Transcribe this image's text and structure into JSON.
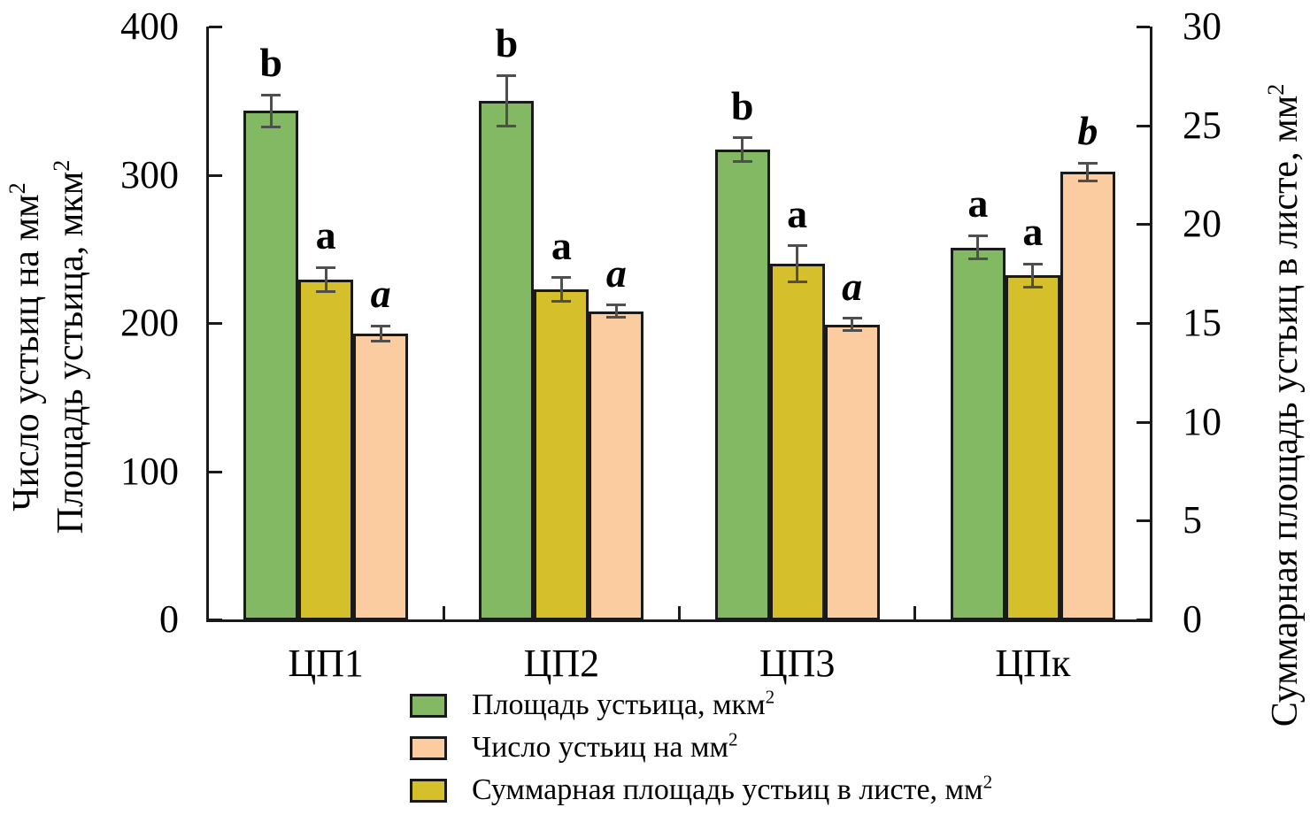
{
  "chart_data": {
    "type": "bar",
    "title": "",
    "categories": [
      "ЦП1",
      "ЦП2",
      "ЦП3",
      "ЦПк"
    ],
    "left_axis": {
      "title_line1": {
        "text": "Число устьиц на мм",
        "sup": "2"
      },
      "title_line2": {
        "text": "Площадь устьица, мкм",
        "sup": "2"
      },
      "min": 0,
      "max": 400,
      "ticks": [
        "0",
        "100",
        "200",
        "300",
        "400"
      ]
    },
    "right_axis": {
      "title": {
        "text": "Суммарная площадь устьиц в листе, мм",
        "sup": "2"
      },
      "min": 0,
      "max": 30,
      "ticks": [
        "0",
        "5",
        "10",
        "15",
        "20",
        "25",
        "30"
      ]
    },
    "grid": "off",
    "legend_position": "bottom",
    "bar_order_note": "bars left to right in each group: stoma_area (green), total_area (olive, right axis), stoma_count (peach)",
    "series": [
      {
        "id": "stoma_area",
        "legend": {
          "text": "Площадь устьица, мкм",
          "sup": "2"
        },
        "axis": "left",
        "color": "#83B963",
        "values": [
          343,
          350,
          317,
          251
        ],
        "errors": [
          11,
          17,
          8,
          8
        ],
        "sig_letters": [
          "b",
          "b",
          "b",
          "a"
        ],
        "letter_style": "bold"
      },
      {
        "id": "total_area",
        "legend": {
          "text": "Суммарная площадь устьиц в листе, мм",
          "sup": "2"
        },
        "axis": "right",
        "color": "#D5C02B",
        "values": [
          17.2,
          16.7,
          18.0,
          17.4
        ],
        "errors": [
          0.6,
          0.6,
          0.9,
          0.6
        ],
        "sig_letters": [
          "a",
          "a",
          "a",
          "a"
        ],
        "letter_style": "bold"
      },
      {
        "id": "stoma_count",
        "legend": {
          "text": "Число устьиц на мм",
          "sup": "2"
        },
        "axis": "left",
        "color": "#FACCA0",
        "values": [
          193,
          208,
          199,
          302
        ],
        "errors": [
          5,
          4,
          4,
          6
        ],
        "sig_letters": [
          "a",
          "a",
          "a",
          "b"
        ],
        "letter_style": "bold-italic"
      }
    ],
    "legend_order": [
      "stoma_area",
      "stoma_count",
      "total_area"
    ],
    "style": {
      "axis_color": "#1a1a1a",
      "bar_border_color": "#1a1a1a",
      "error_bar_color": "#4f4f4f",
      "background": "#ffffff",
      "text_color": "#000000"
    }
  }
}
